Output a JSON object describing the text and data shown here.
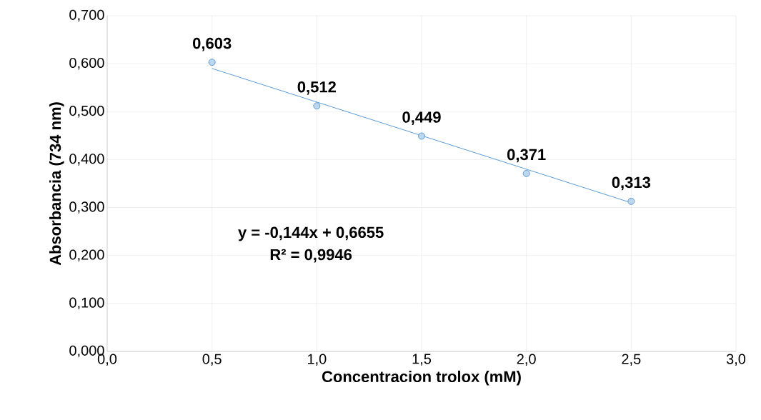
{
  "chart_data": {
    "type": "scatter",
    "xlabel": "Concentracion trolox (mM)",
    "ylabel": "Absorbancia (734 nm)",
    "x": [
      0.5,
      1.0,
      1.5,
      2.0,
      2.5
    ],
    "series": [
      {
        "color": "#5b9bd5",
        "values": [
          0.603,
          0.512,
          0.449,
          0.371,
          0.313
        ],
        "value_labels": [
          "0,603",
          "0,512",
          "0,449",
          "0,371",
          "0,313"
        ],
        "marker": "circle"
      },
      {
        "type": "line",
        "color": "#5b9bd5",
        "x": [
          0.5,
          2.5
        ],
        "values": [
          0.59,
          0.31
        ],
        "marker": "none"
      }
    ],
    "annotations": [
      "y = -0,144x + 0,6655",
      "R² = 0,9946"
    ],
    "xlim": [
      0,
      3
    ],
    "ylim": [
      0,
      0.7
    ],
    "xticks": [
      {
        "value": 0,
        "label": "0,0"
      },
      {
        "value": 0.5,
        "label": "0,5"
      },
      {
        "value": 1,
        "label": "1,0"
      },
      {
        "value": 1.5,
        "label": "1,5"
      },
      {
        "value": 2,
        "label": "2,0"
      },
      {
        "value": 2.5,
        "label": "2,5"
      },
      {
        "value": 3,
        "label": "3,0"
      }
    ],
    "yticks": [
      {
        "value": 0,
        "label": "0,000"
      },
      {
        "value": 0.1,
        "label": "0,100"
      },
      {
        "value": 0.2,
        "label": "0,200"
      },
      {
        "value": 0.3,
        "label": "0,300"
      },
      {
        "value": 0.4,
        "label": "0,400"
      },
      {
        "value": 0.5,
        "label": "0,500"
      },
      {
        "value": 0.6,
        "label": "0,600"
      },
      {
        "value": 0.7,
        "label": "0,700"
      }
    ],
    "grid": true
  }
}
